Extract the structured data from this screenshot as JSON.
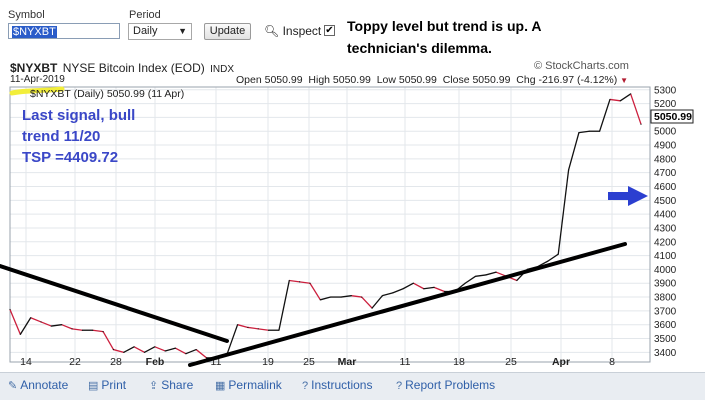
{
  "toolbar": {
    "symbol_label": "Symbol",
    "symbol_value": "$NYXBT",
    "period_label": "Period",
    "period_value": "Daily",
    "update_label": "Update",
    "inspect_label": "Inspect",
    "inspect_checked": true
  },
  "annotation_top": {
    "line1": "Toppy level but trend is up. A",
    "line2": "technician's dilemma."
  },
  "chart_header": {
    "symbol": "$NYXBT",
    "name": "NYSE Bitcoin Index (EOD)",
    "exchange": "INDX",
    "date": "11-Apr-2019",
    "brand": "© StockCharts.com",
    "open": "Open 5050.99",
    "high": "High 5050.99",
    "low": "Low 5050.99",
    "close": "Close 5050.99",
    "chg": "Chg -216.97 (-4.12%)",
    "legend": "$NYXBT (Daily) 5050.99 (11 Apr)",
    "last_value": "5050.99"
  },
  "annotation_note": {
    "line1": "Last signal, bull",
    "line2": "trend 11/20",
    "line3": "TSP =4409.72"
  },
  "chart_data": {
    "type": "line",
    "title": "$NYXBT NYSE Bitcoin Index (EOD) INDX",
    "xlabel": "",
    "ylabel": "",
    "ylim": [
      3330,
      5320
    ],
    "y_ticks": [
      3400,
      3500,
      3600,
      3700,
      3800,
      3900,
      4000,
      4100,
      4200,
      4300,
      4400,
      4500,
      4600,
      4700,
      4800,
      4900,
      5000,
      5100,
      5200,
      5300
    ],
    "x_ticks": [
      "14",
      "22",
      "28",
      "Feb",
      "11",
      "19",
      "25",
      "Mar",
      "11",
      "18",
      "25",
      "Apr",
      "8"
    ],
    "x_ticks_bold": [
      "Feb",
      "Mar",
      "Apr"
    ],
    "line_color": "#cc1f3d",
    "series": [
      {
        "values": [
          3710,
          3530,
          3650,
          3620,
          3590,
          3600,
          3570,
          3560,
          3560,
          3550,
          3420,
          3400,
          3440,
          3400,
          3440,
          3410,
          3430,
          3390,
          3420,
          3360,
          3360,
          3390,
          3600,
          3580,
          3570,
          3560,
          3560,
          3920,
          3910,
          3900,
          3780,
          3800,
          3800,
          3810,
          3800,
          3720,
          3810,
          3830,
          3860,
          3900,
          3860,
          3870,
          3840,
          3840,
          3900,
          3950,
          3960,
          3980,
          3950,
          3920,
          4000,
          4020,
          4060,
          4110,
          4720,
          4990,
          5000,
          5000,
          5230,
          5220,
          5270,
          5051
        ]
      }
    ],
    "annotations": [
      "Toppy level but trend is up. A technician's dilemma.",
      "Last signal, bull trend 11/20",
      "TSP =4409.72"
    ],
    "grid": true,
    "legend": "top-left"
  },
  "footer": {
    "annotate": "Annotate",
    "print": "Print",
    "share": "Share",
    "permalink": "Permalink",
    "instructions": "Instructions",
    "report": "Report Problems"
  }
}
